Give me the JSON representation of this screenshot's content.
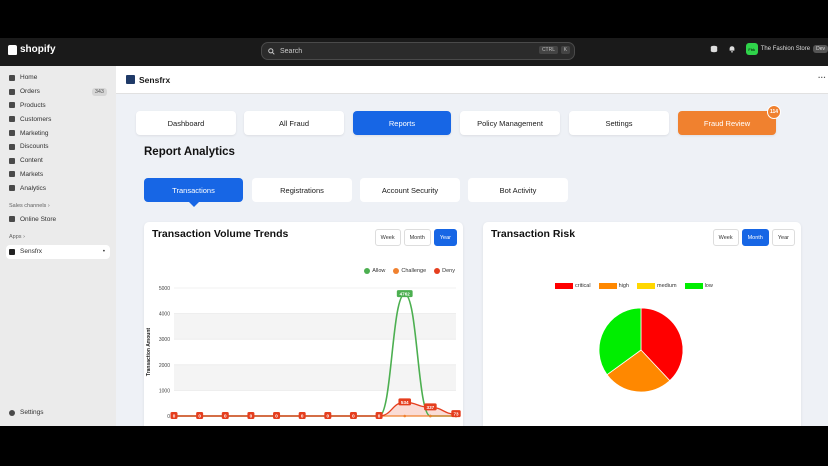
{
  "topbar": {
    "logo": "shopify",
    "search_label": "Search",
    "search_shortcut": "CTRL",
    "search_shortcut_key": "K",
    "store_avatar": "Fbk",
    "store_name": "The Fashion Store",
    "store_tag": "Dev"
  },
  "sidebar": {
    "items": [
      {
        "label": "Home",
        "icon": "home-icon"
      },
      {
        "label": "Orders",
        "icon": "orders-icon",
        "badge": "343"
      },
      {
        "label": "Products",
        "icon": "products-icon"
      },
      {
        "label": "Customers",
        "icon": "customers-icon"
      },
      {
        "label": "Marketing",
        "icon": "marketing-icon"
      },
      {
        "label": "Discounts",
        "icon": "discounts-icon"
      },
      {
        "label": "Content",
        "icon": "content-icon"
      },
      {
        "label": "Markets",
        "icon": "markets-icon"
      },
      {
        "label": "Analytics",
        "icon": "analytics-icon"
      }
    ],
    "sales_channels_label": "Sales channels",
    "online_store": "Online Store",
    "apps_label": "Apps",
    "app_name": "Sensfrx",
    "settings": "Settings"
  },
  "app": {
    "name": "Sensfrx",
    "tabs": [
      "Dashboard",
      "All Fraud",
      "Reports",
      "Policy Management",
      "Settings",
      "Fraud Review"
    ],
    "fraud_review_badge": "114",
    "section_title": "Report Analytics",
    "subtabs": [
      "Transactions",
      "Registrations",
      "Account Security",
      "Bot Activity"
    ]
  },
  "volume_card": {
    "title": "Transaction Volume Trends",
    "periods": [
      "Week",
      "Month",
      "Year"
    ],
    "active_period": "Year"
  },
  "risk_card": {
    "title": "Transaction Risk",
    "periods": [
      "Week",
      "Month",
      "Year"
    ],
    "active_period": "Month"
  },
  "chart_data": [
    {
      "type": "line",
      "title": "Transaction Volume Trends",
      "ylabel": "Transaction Amount",
      "ylim": [
        0,
        5000
      ],
      "yticks": [
        "0",
        "1000",
        "2000",
        "3000",
        "4000",
        "5000"
      ],
      "legend": "top-right",
      "x": [
        1,
        2,
        3,
        4,
        5,
        6,
        7,
        8,
        9,
        10,
        11,
        12
      ],
      "series": [
        {
          "name": "Allow",
          "color": "#4caf50",
          "values": [
            0,
            0,
            0,
            0,
            0,
            0,
            0,
            0,
            0,
            4762,
            0,
            0
          ]
        },
        {
          "name": "Challenge",
          "color": "#f0812f",
          "values": [
            0,
            0,
            0,
            0,
            0,
            0,
            0,
            0,
            0,
            0,
            0,
            0
          ]
        },
        {
          "name": "Deny",
          "color": "#e53e1e",
          "values": [
            0,
            0,
            0,
            0,
            0,
            0,
            0,
            0,
            0,
            534,
            337,
            73
          ]
        }
      ],
      "point_labels": [
        "0",
        "0",
        "0",
        "0",
        "0",
        "0",
        "0",
        "0",
        "0",
        "4762",
        "534",
        "337",
        "73"
      ]
    },
    {
      "type": "pie",
      "title": "Transaction Risk",
      "legend": "top",
      "labels": [
        "critical",
        "high",
        "medium",
        "low"
      ],
      "colors": [
        "#ff0000",
        "#ff8800",
        "#ffd700",
        "#00ee00"
      ],
      "values": [
        38,
        27,
        0,
        35
      ]
    }
  ]
}
